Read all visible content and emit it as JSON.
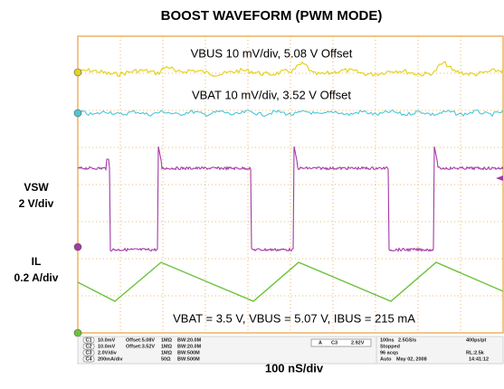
{
  "title": "BOOST WAVEFORM (PWM MODE)",
  "screen": {
    "vbus_label": "VBUS 10 mV/div, 5.08 V Offset",
    "vbat_label": "VBAT 10 mV/div, 3.52 V Offset",
    "conditions": "VBAT = 3.5 V, VBUS = 5.07 V, IBUS = 215 mA"
  },
  "side_labels": {
    "vsw": "VSW",
    "vsw_scale": "2 V/div",
    "il": "IL",
    "il_scale": "0.2 A/div"
  },
  "timebase_label": "100 nS/div",
  "status": {
    "channels": [
      {
        "id": "C1",
        "scale": "10.0mV",
        "offset": "Offset:5.08V",
        "imp": "1MΩ",
        "bw": "BW:20.0M"
      },
      {
        "id": "C2",
        "scale": "10.0mV",
        "offset": "Offset:3.52V",
        "imp": "1MΩ",
        "bw": "BW:20.0M"
      },
      {
        "id": "C3",
        "scale": "2.0V/div",
        "offset": "",
        "imp": "1MΩ",
        "bw": "BW:500M"
      },
      {
        "id": "C4",
        "scale": "200mA/div",
        "offset": "",
        "imp": "50Ω",
        "bw": "BW:500M"
      }
    ],
    "trigger": {
      "mode": "A",
      "source": "C3",
      "level": "2.92V"
    },
    "acq": {
      "time": "100ns",
      "rate": "2.5GS/s",
      "res": "400ps/pt",
      "state": "Stopped",
      "acqs": "96 acqs",
      "rl": "RL:2.5k",
      "auto": "Auto",
      "date": "May 02, 2008",
      "clock": "14:41:12"
    }
  }
}
